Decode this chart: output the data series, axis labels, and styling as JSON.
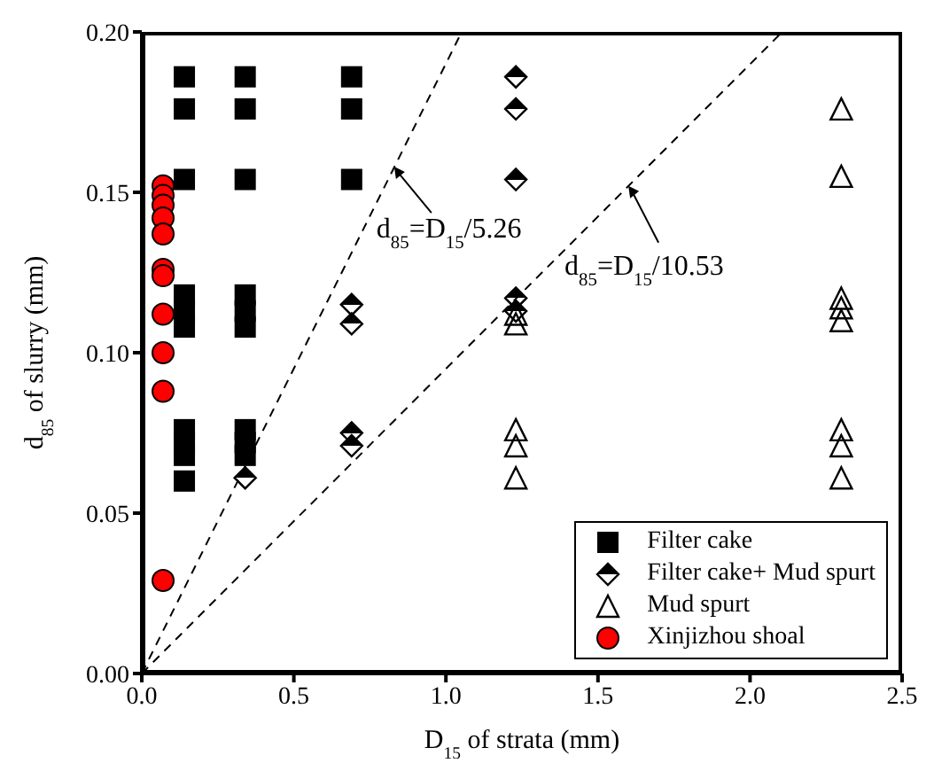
{
  "chart_data": {
    "type": "scatter",
    "xlabel": "D$_{15}$ of strata (mm)",
    "ylabel": "d$_{85}$ of slurry (mm)",
    "xlim": [
      0,
      2.5
    ],
    "ylim": [
      0,
      0.2
    ],
    "xticks": [
      {
        "value": 0,
        "label": "0.0"
      },
      {
        "value": 0.5,
        "label": "0.5"
      },
      {
        "value": 1,
        "label": "1.0"
      },
      {
        "value": 1.5,
        "label": "1.5"
      },
      {
        "value": 2,
        "label": "2.0"
      },
      {
        "value": 2.5,
        "label": "2.5"
      }
    ],
    "yticks": [
      {
        "value": 0,
        "label": "0.00"
      },
      {
        "value": 0.05,
        "label": "0.05"
      },
      {
        "value": 0.1,
        "label": "0.10"
      },
      {
        "value": 0.15,
        "label": "0.15"
      },
      {
        "value": 0.2,
        "label": "0.20"
      }
    ],
    "grid": false,
    "legend": "bottom right",
    "series": [
      {
        "name": "Filter cake",
        "color": "#000000",
        "marker": "square",
        "x": [
          0.14,
          0.14,
          0.14,
          0.14,
          0.14,
          0.14,
          0.14,
          0.14,
          0.14,
          0.14,
          0.34,
          0.34,
          0.34,
          0.34,
          0.34,
          0.34,
          0.34,
          0.34,
          0.34,
          0.69,
          0.69,
          0.69
        ],
        "values": [
          0.186,
          0.176,
          0.154,
          0.118,
          0.113,
          0.108,
          0.076,
          0.072,
          0.068,
          0.06,
          0.186,
          0.176,
          0.154,
          0.118,
          0.113,
          0.108,
          0.076,
          0.072,
          0.068,
          0.186,
          0.176,
          0.154
        ]
      },
      {
        "name": "Filter cake+ Mud spurt",
        "color": "#000000",
        "marker": "diamond",
        "x": [
          0.34,
          0.69,
          0.69,
          0.69,
          0.69,
          1.23,
          1.23,
          1.23,
          1.23,
          1.23
        ],
        "values": [
          0.061,
          0.115,
          0.109,
          0.075,
          0.071,
          0.186,
          0.176,
          0.154,
          0.117,
          0.113
        ]
      },
      {
        "name": "Mud spurt",
        "color": "#000000",
        "marker": "triangle",
        "x": [
          1.23,
          1.23,
          1.23,
          1.23,
          1.23,
          2.3,
          2.3,
          2.3,
          2.3,
          2.3,
          2.3,
          2.3,
          2.3
        ],
        "values": [
          0.112,
          0.109,
          0.076,
          0.071,
          0.061,
          0.176,
          0.155,
          0.117,
          0.114,
          0.11,
          0.076,
          0.071,
          0.061
        ]
      },
      {
        "name": "Xinjizhou shoal",
        "color": "#ff0000",
        "marker": "circle",
        "x": [
          0.07,
          0.07,
          0.07,
          0.07,
          0.07,
          0.07,
          0.07,
          0.07,
          0.07,
          0.07,
          0.07
        ],
        "values": [
          0.152,
          0.149,
          0.146,
          0.142,
          0.137,
          0.126,
          0.124,
          0.112,
          0.1,
          0.088,
          0.029
        ]
      },
      {
        "type": "line",
        "color": "#000000",
        "line_style": "dashed",
        "marker": "none",
        "x": [
          0,
          1.052
        ],
        "values": [
          0,
          0.2
        ]
      },
      {
        "type": "line",
        "color": "#000000",
        "line_style": "dashed",
        "marker": "none",
        "x": [
          0,
          2.106
        ],
        "values": [
          0,
          0.2
        ]
      }
    ],
    "annotations": [
      {
        "text": "d$_{85}$=D$_{15}$/5.26",
        "x": 0.83,
        "y": 0.158
      },
      {
        "text": "d$_{85}$=D$_{15}$/10.53",
        "x": 1.6,
        "y": 0.152
      }
    ]
  }
}
